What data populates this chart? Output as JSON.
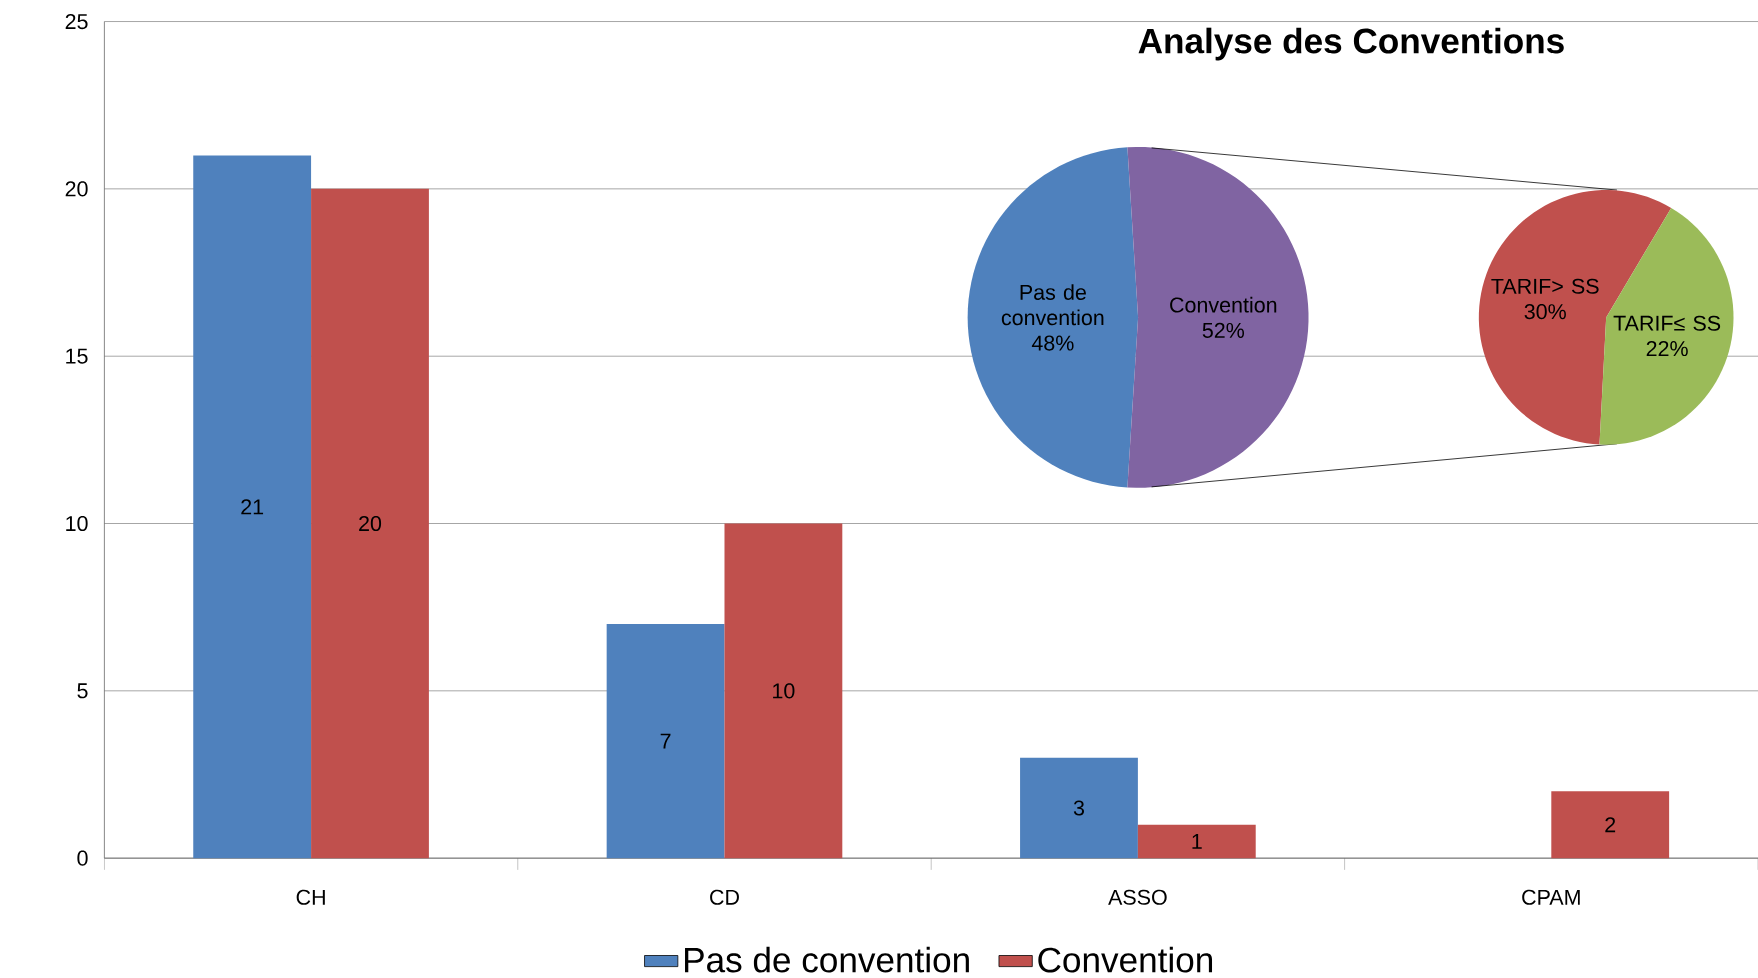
{
  "chart_data": [
    {
      "type": "bar",
      "categories": [
        "CH",
        "CD",
        "ASSO",
        "CPAM"
      ],
      "series": [
        {
          "name": "Pas de convention",
          "color": "#4f81bd",
          "values": [
            21,
            7,
            3,
            null
          ]
        },
        {
          "name": "Convention",
          "color": "#c0504d",
          "values": [
            20,
            10,
            1,
            2
          ]
        }
      ],
      "ylim": [
        0,
        25
      ],
      "yticks": [
        0,
        5,
        10,
        15,
        20,
        25
      ],
      "grid": "y",
      "legend": "bottom",
      "data_labels": true
    },
    {
      "type": "pie",
      "title": "Analyse des Conventions",
      "categories": [
        "Pas de convention",
        "Convention"
      ],
      "values": [
        48,
        52
      ],
      "value_labels": [
        "48%",
        "52%"
      ],
      "colors": [
        "#4f81bd",
        "#8064a2"
      ]
    },
    {
      "type": "pie",
      "categories": [
        "TARIF> SS",
        "TARIF≤ SS"
      ],
      "values": [
        30,
        22
      ],
      "value_labels": [
        "30%",
        "22%"
      ],
      "colors": [
        "#c0504d",
        "#9bbb59"
      ]
    }
  ]
}
